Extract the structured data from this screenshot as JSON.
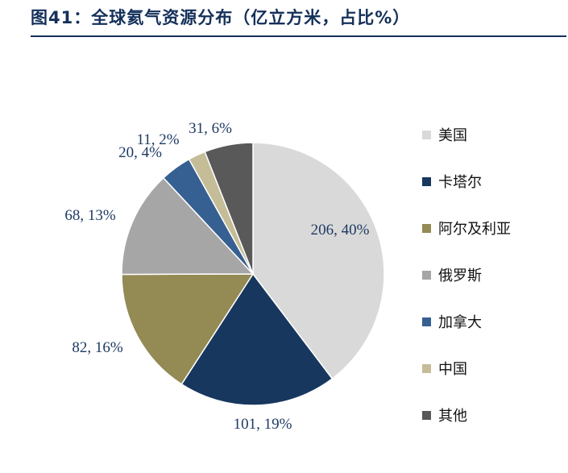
{
  "header": {
    "title": "图41：全球氦气资源分布（亿立方米，占比%）"
  },
  "chart_data": {
    "type": "pie",
    "title": "图41：全球氦气资源分布（亿立方米，占比%）",
    "slices": [
      {
        "name": "美国",
        "value": 206,
        "percent": 40,
        "label": "206, 40%",
        "color": "#d9d9d9"
      },
      {
        "name": "卡塔尔",
        "value": 101,
        "percent": 19,
        "label": "101, 19%",
        "color": "#17375e"
      },
      {
        "name": "阿尔及利亚",
        "value": 82,
        "percent": 16,
        "label": "82, 16%",
        "color": "#948a54"
      },
      {
        "name": "俄罗斯",
        "value": 68,
        "percent": 13,
        "label": "68, 13%",
        "color": "#a6a6a6"
      },
      {
        "name": "加拿大",
        "value": 20,
        "percent": 4,
        "label": "20, 4%",
        "color": "#376092"
      },
      {
        "name": "中国",
        "value": 11,
        "percent": 2,
        "label": "11, 2%",
        "color": "#c4bd97"
      },
      {
        "name": "其他",
        "value": 31,
        "percent": 6,
        "label": "31, 6%",
        "color": "#595959"
      }
    ],
    "legend_position": "right"
  }
}
